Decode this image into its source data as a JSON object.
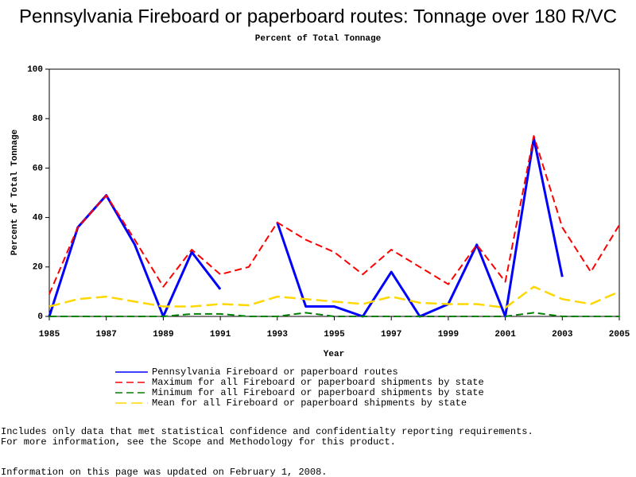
{
  "chart_data": {
    "type": "line",
    "title": "Pennsylvania Fireboard or paperboard routes: Tonnage over 180 R/VC",
    "subtitle": "Percent of Total Tonnage",
    "x_label": "Year",
    "y_label": "Percent of Total Tonnage",
    "x": [
      1985,
      1986,
      1987,
      1988,
      1989,
      1990,
      1991,
      1992,
      1993,
      1994,
      1995,
      1996,
      1997,
      1998,
      1999,
      2000,
      2001,
      2002,
      2003,
      2004,
      2005
    ],
    "xlim": [
      1985,
      2005
    ],
    "xticks": [
      1985,
      1987,
      1989,
      1991,
      1993,
      1995,
      1997,
      1999,
      2001,
      2003,
      2005
    ],
    "ylim": [
      0,
      100
    ],
    "yticks": [
      0,
      20,
      40,
      60,
      80,
      100
    ],
    "series": [
      {
        "name": "Pennsylvania Fireboard or paperboard routes",
        "color": "#0000ff",
        "values": [
          0,
          36,
          49,
          29,
          0,
          26,
          11,
          null,
          38,
          4,
          4,
          0,
          18,
          0,
          5,
          29,
          0,
          72,
          16,
          null,
          null
        ]
      },
      {
        "name": "Maximum for all Fireboard or paperboard shipments by state",
        "color": "#ff0000",
        "values": [
          9,
          36,
          49,
          31,
          12,
          27,
          17,
          20,
          38,
          31,
          26,
          17,
          27,
          20,
          13,
          29,
          14,
          73,
          36,
          18,
          37
        ]
      },
      {
        "name": "Minimum for all Fireboard or paperboard shipments by state",
        "color": "#008000",
        "values": [
          0,
          0,
          0,
          0,
          0,
          1,
          1,
          0,
          0,
          1.5,
          0,
          0,
          0,
          0,
          0,
          0,
          0,
          1.5,
          0,
          0,
          0
        ]
      },
      {
        "name": "Mean for all Fireboard or paperboard shipments by state",
        "color": "#ffd700",
        "values": [
          4,
          7,
          8,
          6,
          4,
          4,
          5,
          4.5,
          8,
          7,
          6,
          5,
          8,
          5.5,
          5,
          5,
          3.5,
          12,
          7,
          5,
          10
        ]
      }
    ],
    "notes": [
      "Includes only data that met statistical confidence and confidentialty reporting requirements.",
      "For more information, see the Scope and Methodology for this product."
    ],
    "updated": "Information on this page was updated on February 1, 2008."
  }
}
